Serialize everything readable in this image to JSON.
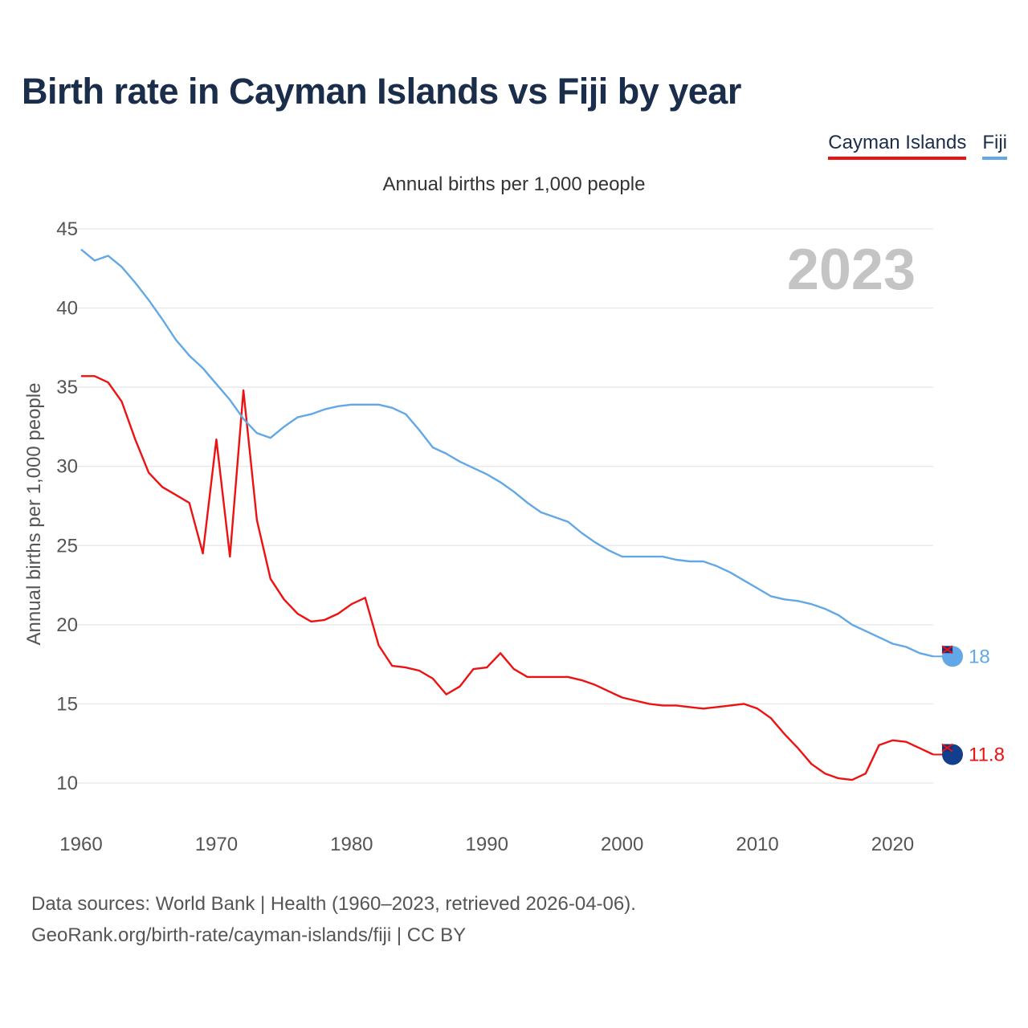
{
  "title": "Birth rate in Cayman Islands vs Fiji by year",
  "legend": {
    "cayman_label": "Cayman Islands",
    "fiji_label": "Fiji"
  },
  "subtitle": "Annual births per 1,000 people",
  "year_watermark": "2023",
  "footer": {
    "line1": "Data sources: World Bank | Health (1960–2023, retrieved 2026-04-06).",
    "line2": "GeoRank.org/birth-rate/cayman-islands/fiji | CC BY"
  },
  "colors": {
    "cayman": "#ee1111",
    "fiji": "#62a8e6",
    "title": "#1a2d4b",
    "grid": "#e6e6e6",
    "watermark": "#c4c4c4"
  },
  "chart_data": {
    "type": "line",
    "title": "Birth rate in Cayman Islands vs Fiji by year",
    "xlabel": "",
    "ylabel": "Annual births per 1,000 people",
    "xlim": [
      1960,
      2023
    ],
    "ylim": [
      10,
      45
    ],
    "x_ticks": [
      1960,
      1970,
      1980,
      1990,
      2000,
      2010,
      2020
    ],
    "y_ticks": [
      10,
      15,
      20,
      25,
      30,
      35,
      40,
      45
    ],
    "x": [
      1960,
      1961,
      1962,
      1963,
      1964,
      1965,
      1966,
      1967,
      1968,
      1969,
      1970,
      1971,
      1972,
      1973,
      1974,
      1975,
      1976,
      1977,
      1978,
      1979,
      1980,
      1981,
      1982,
      1983,
      1984,
      1985,
      1986,
      1987,
      1988,
      1989,
      1990,
      1991,
      1992,
      1993,
      1994,
      1995,
      1996,
      1997,
      1998,
      1999,
      2000,
      2001,
      2002,
      2003,
      2004,
      2005,
      2006,
      2007,
      2008,
      2009,
      2010,
      2011,
      2012,
      2013,
      2014,
      2015,
      2016,
      2017,
      2018,
      2019,
      2020,
      2021,
      2022,
      2023
    ],
    "series": [
      {
        "name": "Cayman Islands",
        "color": "#ee1111",
        "end_label": "11.8",
        "values": [
          35.7,
          35.7,
          35.3,
          34.1,
          31.7,
          29.6,
          28.7,
          28.2,
          27.7,
          24.5,
          31.7,
          24.3,
          34.8,
          26.6,
          22.9,
          21.6,
          20.7,
          20.2,
          20.3,
          20.7,
          21.3,
          21.7,
          18.7,
          17.4,
          17.3,
          17.1,
          16.6,
          15.6,
          16.1,
          17.2,
          17.3,
          18.2,
          17.2,
          16.7,
          16.7,
          16.7,
          16.7,
          16.5,
          16.2,
          15.8,
          15.4,
          15.2,
          15.0,
          14.9,
          14.9,
          14.8,
          14.7,
          14.8,
          14.9,
          15.0,
          14.7,
          14.1,
          13.1,
          12.2,
          11.2,
          10.6,
          10.3,
          10.2,
          10.6,
          12.4,
          12.7,
          12.6,
          12.2,
          11.8
        ]
      },
      {
        "name": "Fiji",
        "color": "#62a8e6",
        "end_label": "18",
        "values": [
          43.7,
          43.0,
          43.3,
          42.6,
          41.6,
          40.5,
          39.3,
          38.0,
          37.0,
          36.2,
          35.2,
          34.2,
          33.0,
          32.1,
          31.8,
          32.5,
          33.1,
          33.3,
          33.6,
          33.8,
          33.9,
          33.9,
          33.9,
          33.7,
          33.3,
          32.3,
          31.2,
          30.8,
          30.3,
          29.9,
          29.5,
          29.0,
          28.4,
          27.7,
          27.1,
          26.8,
          26.5,
          25.8,
          25.2,
          24.7,
          24.3,
          24.3,
          24.3,
          24.3,
          24.1,
          24.0,
          24.0,
          23.7,
          23.3,
          22.8,
          22.3,
          21.8,
          21.6,
          21.5,
          21.3,
          21.0,
          20.6,
          20.0,
          19.6,
          19.2,
          18.8,
          18.6,
          18.2,
          18.0
        ]
      }
    ]
  }
}
